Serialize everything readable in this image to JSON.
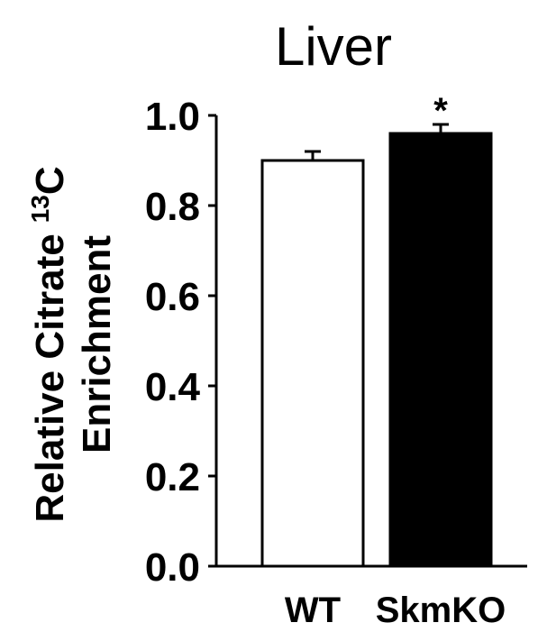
{
  "chart_data": {
    "type": "bar",
    "title": "Liver",
    "ylabel_line1": "Relative Citrate",
    "ylabel_sup": "13",
    "ylabel_c": "C",
    "ylabel_line2": "Enrichment",
    "xlabel": "",
    "categories": [
      "WT",
      "SkmKO"
    ],
    "values": [
      0.9,
      0.96
    ],
    "errors": [
      0.02,
      0.02
    ],
    "bar_colors": [
      "#ffffff",
      "#000000"
    ],
    "annotations": [
      "",
      "*"
    ],
    "ylim": [
      0.0,
      1.0
    ],
    "yticks": [
      "0.0",
      "0.2",
      "0.4",
      "0.6",
      "0.8",
      "1.0"
    ],
    "grid": false,
    "legend": "none"
  }
}
